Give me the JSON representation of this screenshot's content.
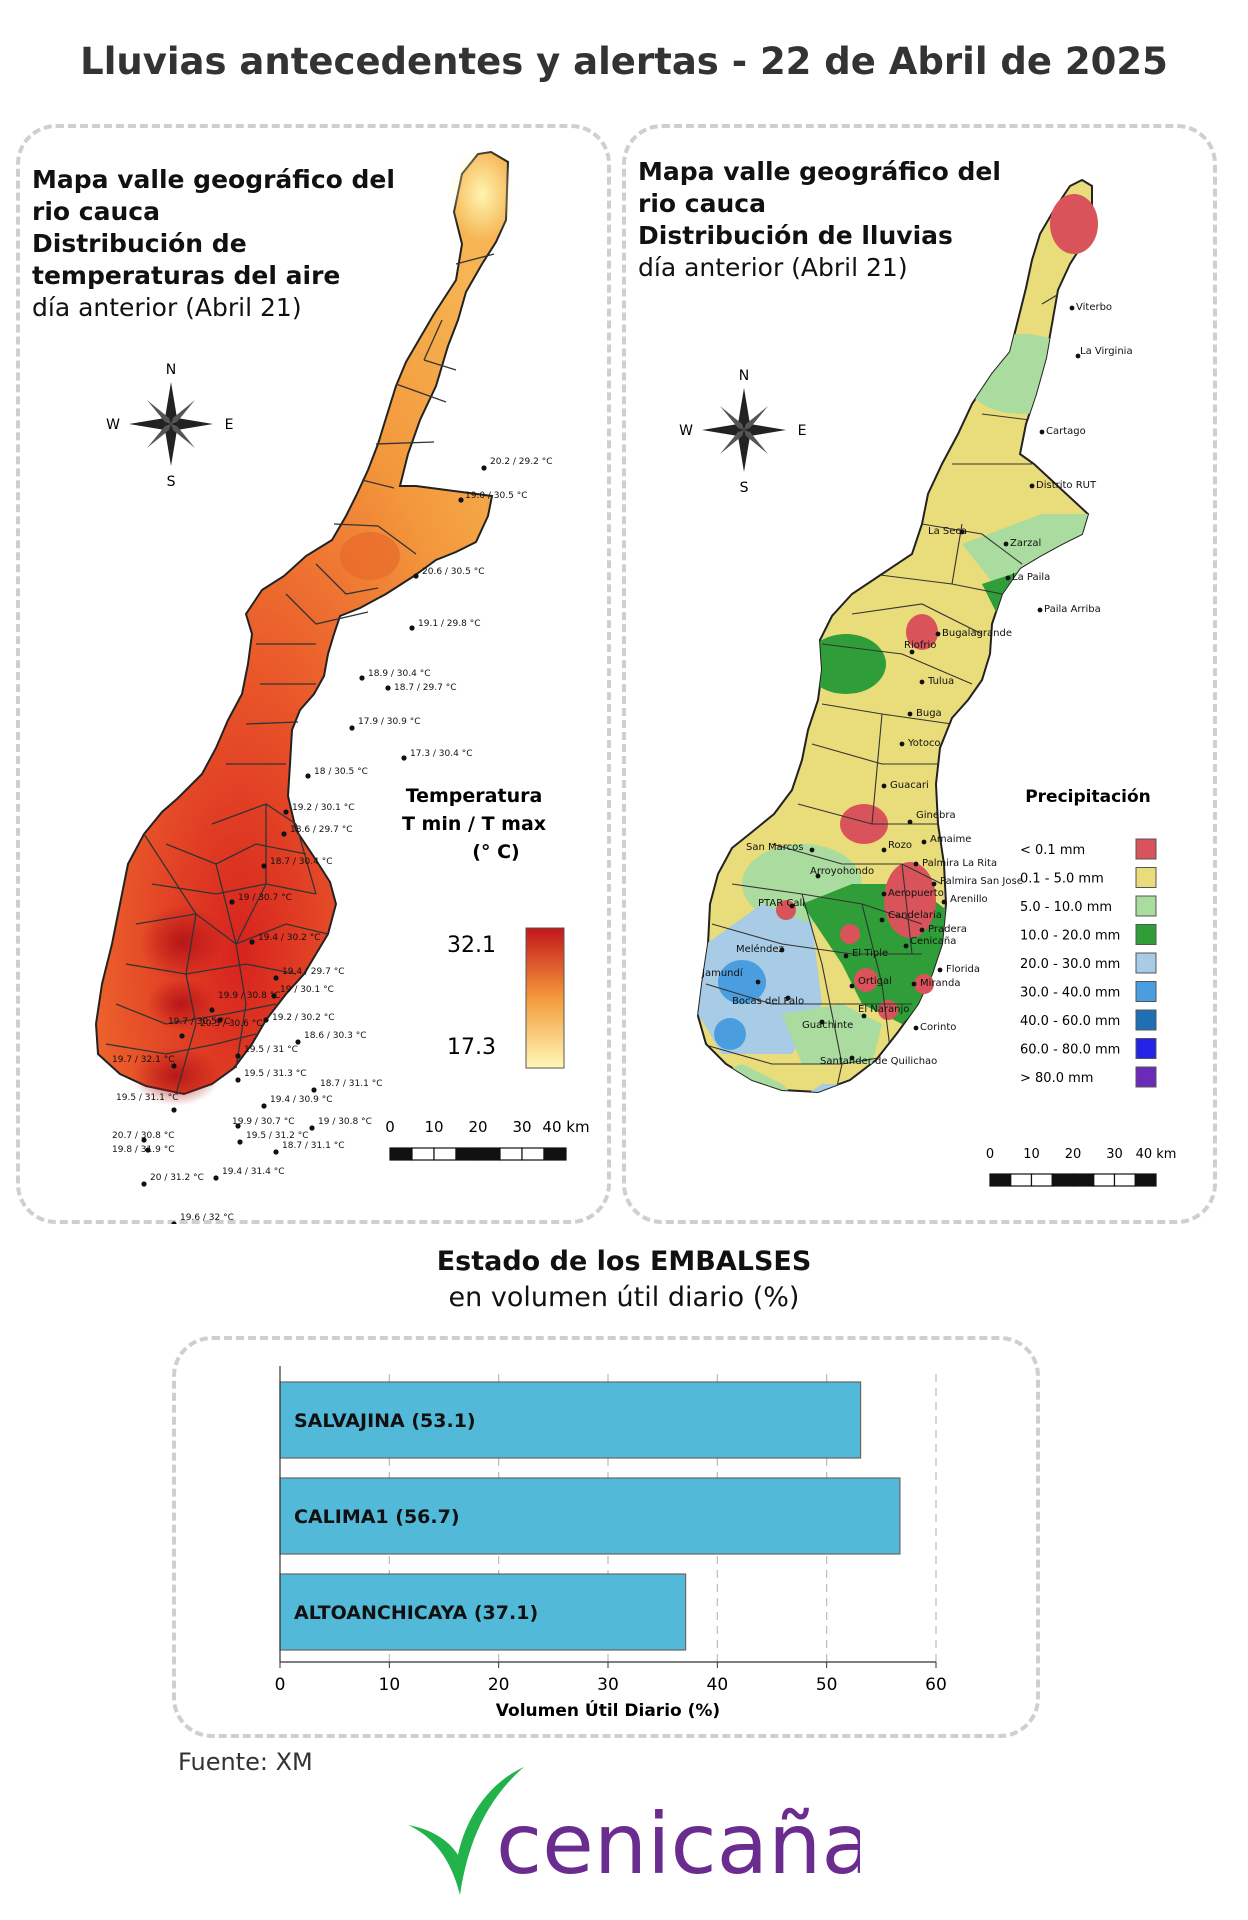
{
  "title": "Lluvias antecedentes y alertas - 22 de Abril de 2025",
  "temp_map": {
    "heading_bold_1": "Mapa valle geográfico del",
    "heading_bold_2": "rio cauca",
    "heading_bold_3": "Distribución de",
    "heading_bold_4": "temperaturas del aire",
    "heading_normal": "día anterior (Abril 21)",
    "legend_title_1": "Temperatura",
    "legend_title_2": "T min / T max",
    "legend_title_3": "(° C)",
    "legend_max": "32.1",
    "legend_min": "17.3",
    "colors": {
      "low": "#fff7b0",
      "mid": "#f5a142",
      "high": "#d9201f"
    },
    "stations": [
      {
        "label": "20.2 / 29.2 °C"
      },
      {
        "label": "19.0 / 30.5 °C"
      },
      {
        "label": "20.6 / 30.5 °C"
      },
      {
        "label": "19.1 / 29.8 °C"
      },
      {
        "label": "18.9 / 30.4 °C"
      },
      {
        "label": "18.7 / 29.7 °C"
      },
      {
        "label": "17.9 / 30.9 °C"
      },
      {
        "label": "17.3 / 30.4 °C"
      },
      {
        "label": "18 / 30.5 °C"
      },
      {
        "label": "19.2 / 30.1 °C"
      },
      {
        "label": "18.6 / 29.7 °C"
      },
      {
        "label": "18.7 / 30.4 °C"
      },
      {
        "label": "19 / 30.7 °C"
      },
      {
        "label": "19.4 / 30.2 °C"
      },
      {
        "label": "19.4 / 29.7 °C"
      },
      {
        "label": "19.9 / 30.8 °C"
      },
      {
        "label": "19 / 30.1 °C"
      },
      {
        "label": "20.5 / 30.6 °C"
      },
      {
        "label": "19.2 / 30.2 °C"
      },
      {
        "label": "19.7 / 30.5 °C"
      },
      {
        "label": "18.6 / 30.3 °C"
      },
      {
        "label": "19.7 / 32.1 °C"
      },
      {
        "label": "19.5 / 31 °C"
      },
      {
        "label": "19.5 / 31.3 °C"
      },
      {
        "label": "18.7 / 31.1 °C"
      },
      {
        "label": "19.5 / 31.1 °C"
      },
      {
        "label": "19.4 / 30.9 °C"
      },
      {
        "label": "19.9 / 30.7 °C"
      },
      {
        "label": "19 / 30.8 °C"
      },
      {
        "label": "20.7 / 30.8 °C"
      },
      {
        "label": "19.5 / 31.2 °C"
      },
      {
        "label": "19.8 / 31.9 °C"
      },
      {
        "label": "18.7 / 31.1 °C"
      },
      {
        "label": "20 / 31.2 °C"
      },
      {
        "label": "19.4 / 31.4 °C"
      },
      {
        "label": "19.6 / 32 °C"
      }
    ]
  },
  "rain_map": {
    "heading_bold_1": "Mapa valle geográfico del",
    "heading_bold_2": "rio cauca",
    "heading_bold_3": "Distribución de lluvias",
    "heading_normal": "día anterior (Abril 21)",
    "legend_title": "Precipitación",
    "legend": [
      {
        "label": "< 0.1 mm",
        "color": "#d9545a"
      },
      {
        "label": "0.1 - 5.0 mm",
        "color": "#e9dc7a"
      },
      {
        "label": "5.0 - 10.0 mm",
        "color": "#a9dc9e"
      },
      {
        "label": "10.0 - 20.0 mm",
        "color": "#2f9e38"
      },
      {
        "label": "20.0 - 30.0 mm",
        "color": "#a8cbe6"
      },
      {
        "label": "30.0 - 40.0 mm",
        "color": "#4a9ee0"
      },
      {
        "label": "40.0 - 60.0 mm",
        "color": "#1f6fb5"
      },
      {
        "label": "60.0 - 80.0 mm",
        "color": "#2323e6"
      },
      {
        "label": "> 80.0 mm",
        "color": "#6a2bb8"
      }
    ],
    "stations": [
      {
        "label": "Viterbo"
      },
      {
        "label": "La Virginia"
      },
      {
        "label": "Cartago"
      },
      {
        "label": "Distrito RUT"
      },
      {
        "label": "La Seca"
      },
      {
        "label": "Zarzal"
      },
      {
        "label": "La Paila"
      },
      {
        "label": "Paila Arriba"
      },
      {
        "label": "Bugalagrande"
      },
      {
        "label": "Riofrio"
      },
      {
        "label": "Tulua"
      },
      {
        "label": "Buga"
      },
      {
        "label": "Yotoco"
      },
      {
        "label": "Guacari"
      },
      {
        "label": "Ginebra"
      },
      {
        "label": "Amaime"
      },
      {
        "label": "San Marcos"
      },
      {
        "label": "Rozo"
      },
      {
        "label": "Palmira La Rita"
      },
      {
        "label": "Arroyohondo"
      },
      {
        "label": "Palmira San Jose"
      },
      {
        "label": "Aeropuerto"
      },
      {
        "label": "Arenillo"
      },
      {
        "label": "PTAR Cali"
      },
      {
        "label": "Candelaria"
      },
      {
        "label": "Pradera"
      },
      {
        "label": "Meléndez"
      },
      {
        "label": "El Tiple"
      },
      {
        "label": "Cenicaña"
      },
      {
        "label": "Florida"
      },
      {
        "label": "Jamundí"
      },
      {
        "label": "Bocas del Palo"
      },
      {
        "label": "Ortigal"
      },
      {
        "label": "Miranda"
      },
      {
        "label": "Guachinte"
      },
      {
        "label": "El Naranjo"
      },
      {
        "label": "Corinto"
      },
      {
        "label": "Santander de Quilichao"
      }
    ]
  },
  "compass": {
    "n": "N",
    "s": "S",
    "e": "E",
    "w": "W"
  },
  "scalebar": {
    "ticks": [
      "0",
      "10",
      "20",
      "30",
      "40 km"
    ]
  },
  "embalses": {
    "title_bold": "Estado de los EMBALSES",
    "title_normal": "en volumen útil diario (%)"
  },
  "chart_data": {
    "type": "bar",
    "orientation": "horizontal",
    "categories": [
      "SALVAJINA",
      "CALIMA1",
      "ALTOANCHICAYA"
    ],
    "bar_labels": [
      "SALVAJINA (53.1)",
      "CALIMA1 (56.7)",
      "ALTOANCHICAYA (37.1)"
    ],
    "values": [
      53.1,
      56.7,
      37.1
    ],
    "xlabel": "Volumen Útil Diario (%)",
    "xlim": [
      0,
      60
    ],
    "xticks": [
      "0",
      "10",
      "20",
      "30",
      "40",
      "50",
      "60"
    ],
    "grid": true,
    "bar_color": "#53b9d9"
  },
  "source": "Fuente: XM",
  "logo": {
    "text": "cenicaña",
    "color": "#6a2c8f",
    "leaf_color": "#22b24c"
  }
}
